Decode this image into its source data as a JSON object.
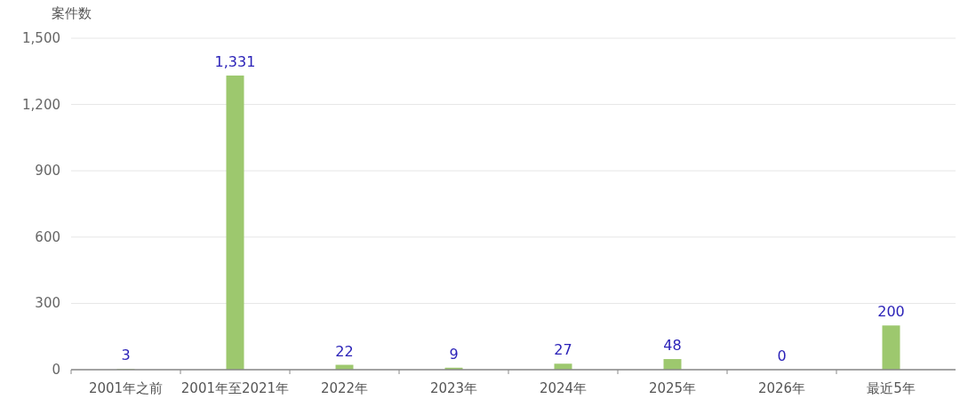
{
  "chart_data": {
    "type": "bar",
    "ylabel": "案件数",
    "categories": [
      "2001年之前",
      "2001年至2021年",
      "2022年",
      "2023年",
      "2024年",
      "2025年",
      "2026年",
      "最近5年"
    ],
    "values": [
      3,
      1331,
      22,
      9,
      27,
      48,
      0,
      200
    ],
    "value_labels": [
      "3",
      "1,331",
      "22",
      "9",
      "27",
      "48",
      "0",
      "200"
    ],
    "color": "#9dc86e",
    "ylim": [
      0,
      1500
    ],
    "yticks": [
      0,
      300,
      600,
      900,
      {
        "value": 1200,
        "label": "1,200"
      },
      {
        "value": 1500,
        "label": "1,500"
      }
    ],
    "grid": "y"
  }
}
